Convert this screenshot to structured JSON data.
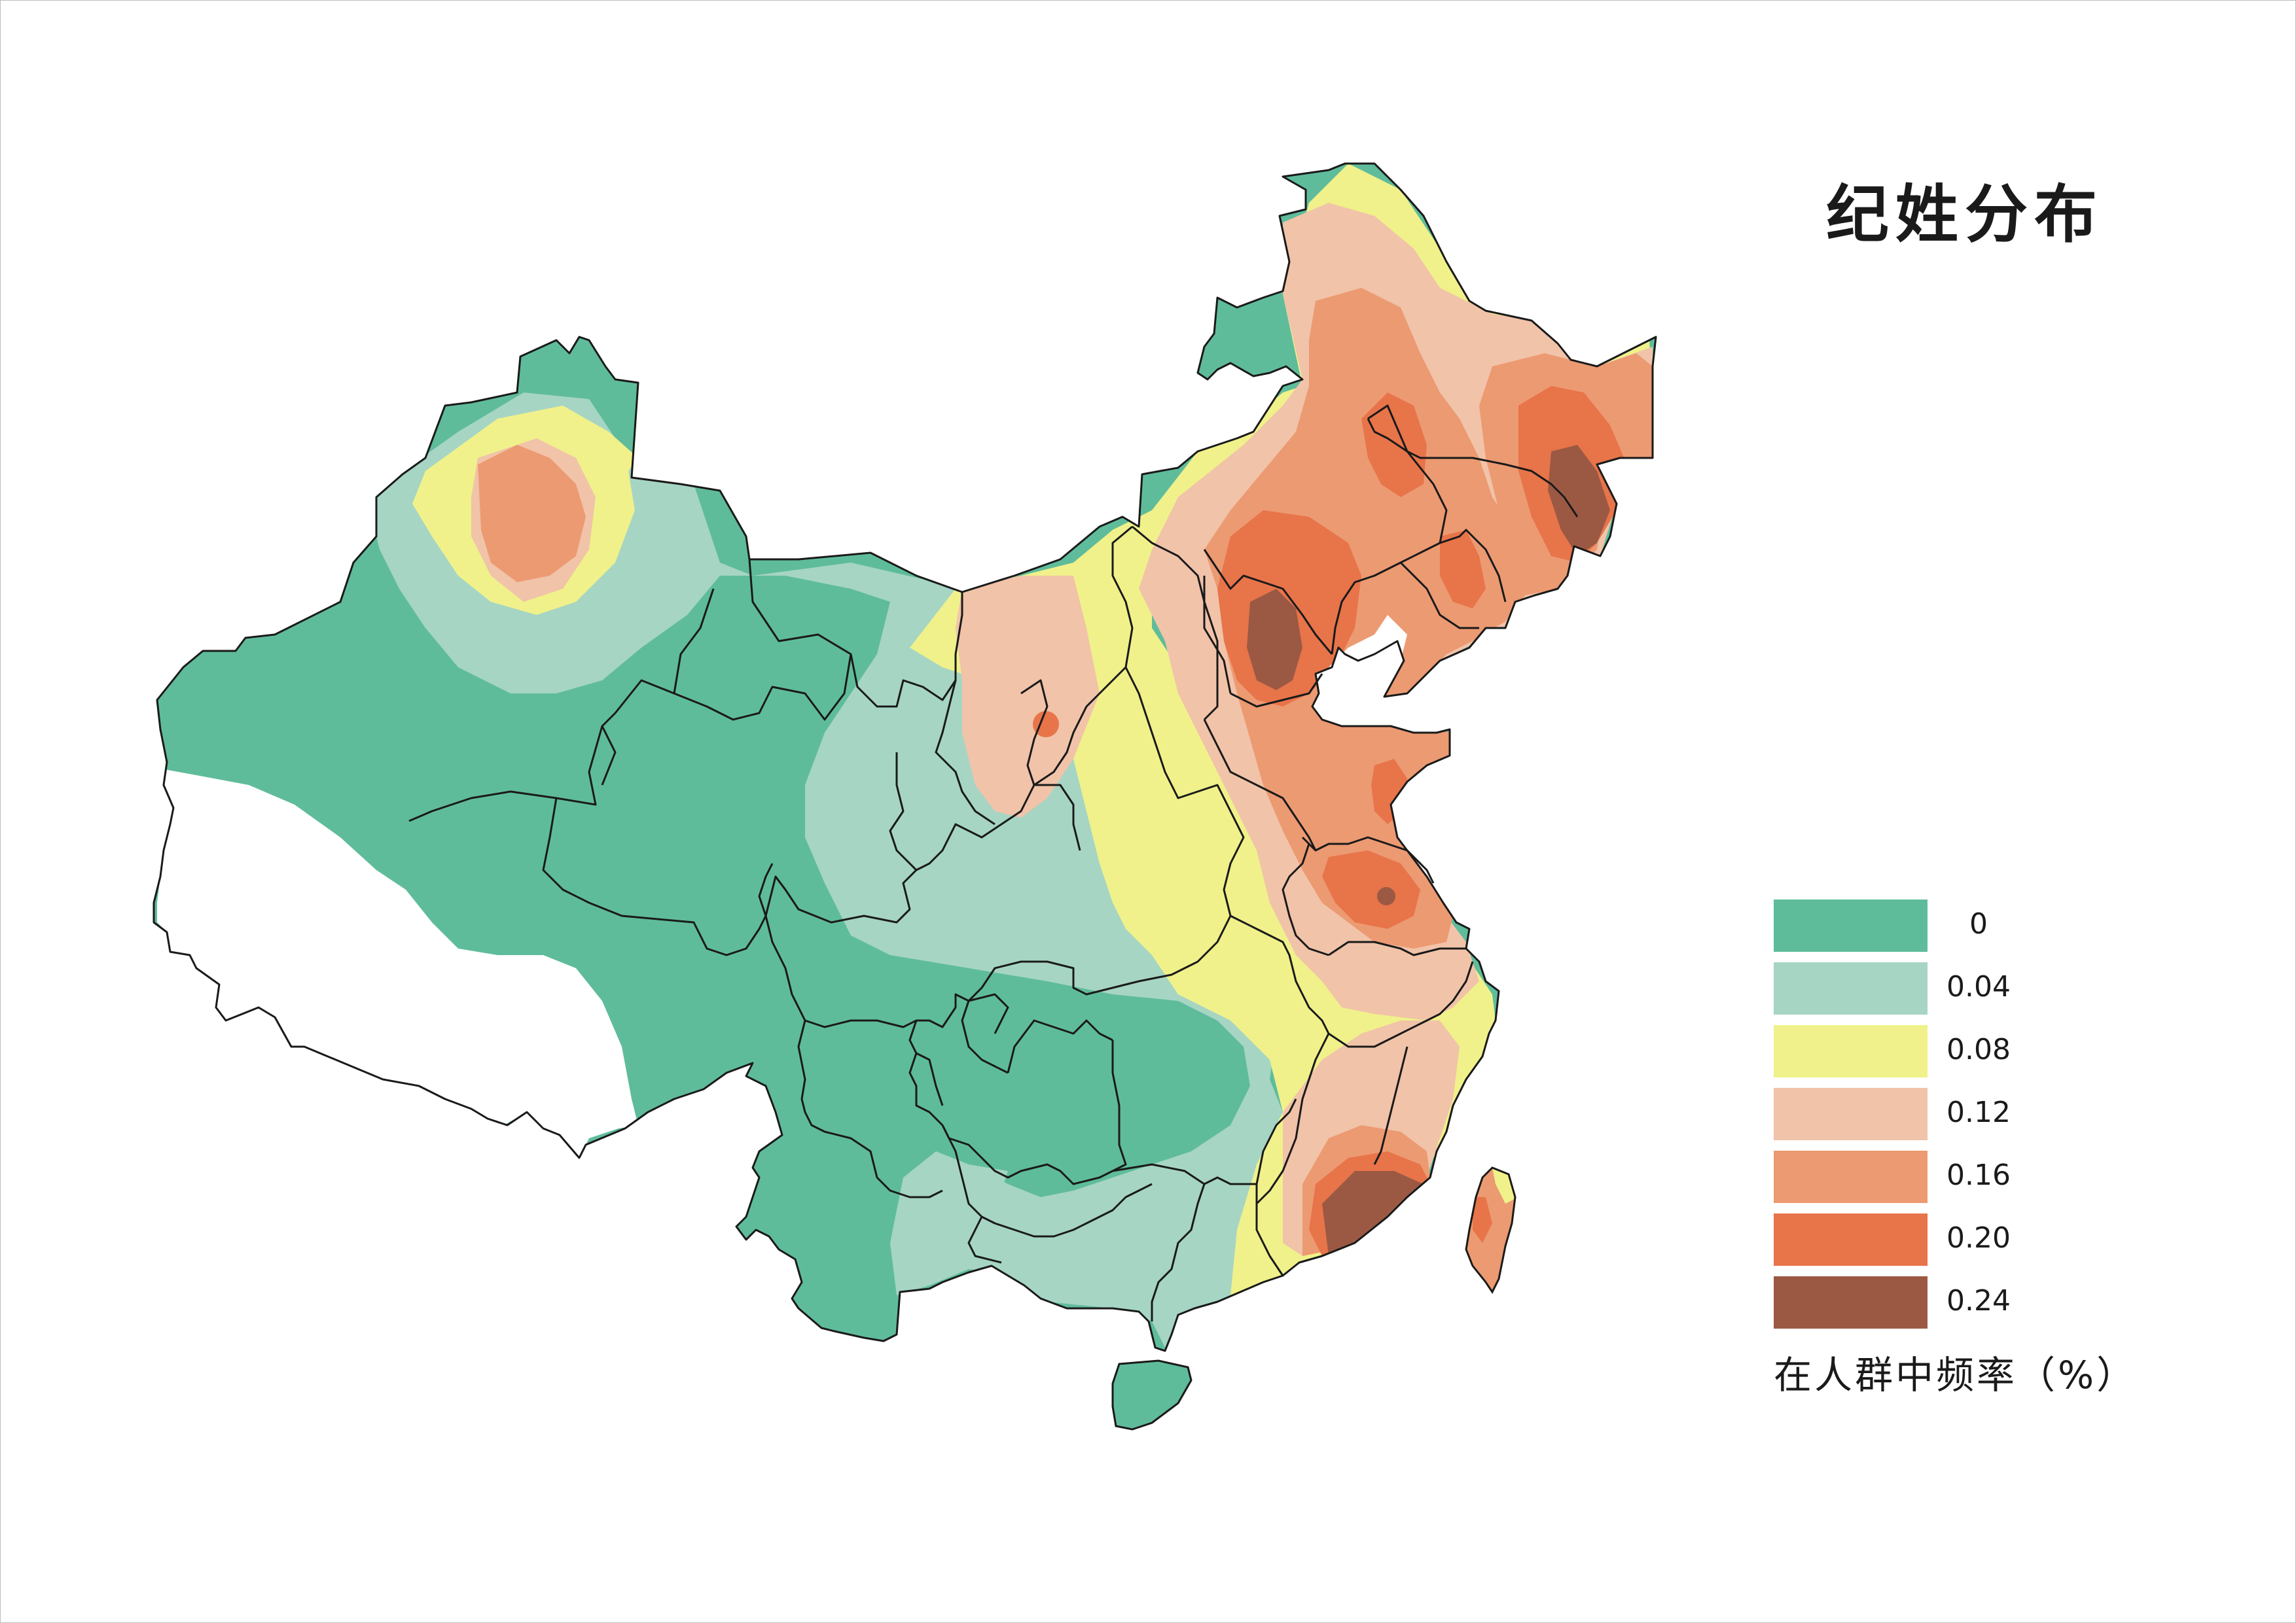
{
  "title": "纪姓分布",
  "legend": {
    "items": [
      {
        "label": "0",
        "color": "#5fbc9b"
      },
      {
        "label": "0.04",
        "color": "#a6d5c4"
      },
      {
        "label": "0.08",
        "color": "#f0f18a"
      },
      {
        "label": "0.12",
        "color": "#f1c3a9"
      },
      {
        "label": "0.16",
        "color": "#ec9a72"
      },
      {
        "label": "0.20",
        "color": "#e8744a"
      },
      {
        "label": "0.24",
        "color": "#9b5943"
      }
    ],
    "caption": "在人群中频率（%）"
  },
  "map_data": {
    "type": "choropleth-contour",
    "region": "China",
    "value_levels": [
      0,
      0.04,
      0.08,
      0.12,
      0.16,
      0.2,
      0.24
    ]
  }
}
